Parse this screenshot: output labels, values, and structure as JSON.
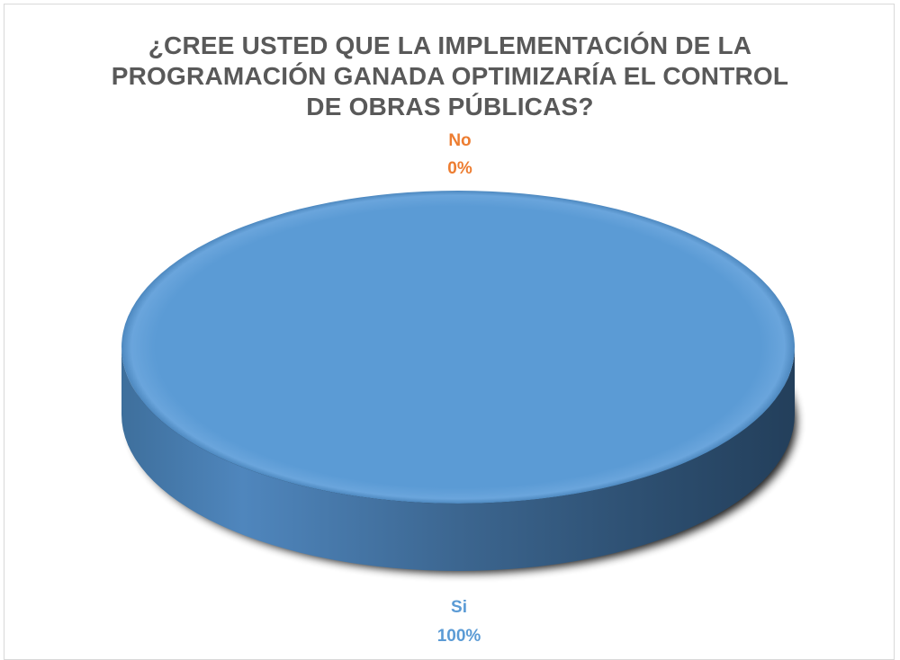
{
  "chart_data": {
    "type": "pie",
    "title": "¿CREE USTED QUE LA IMPLEMENTACIÓN DE LA PROGRAMACIÓN GANADA OPTIMIZARÍA EL CONTROL DE OBRAS PÚBLICAS?",
    "title_lines": [
      "¿CREE USTED QUE LA IMPLEMENTACIÓN DE LA",
      "PROGRAMACIÓN GANADA OPTIMIZARÍA EL CONTROL",
      "DE OBRAS PÚBLICAS?"
    ],
    "style": "3d",
    "categories": [
      "Si",
      "No"
    ],
    "values": [
      100,
      0
    ],
    "data_labels": [
      "100%",
      "0%"
    ],
    "colors": {
      "Si": "#5b9bd5",
      "No": "#ed7d31",
      "title": "#595959"
    },
    "legend": "none"
  }
}
